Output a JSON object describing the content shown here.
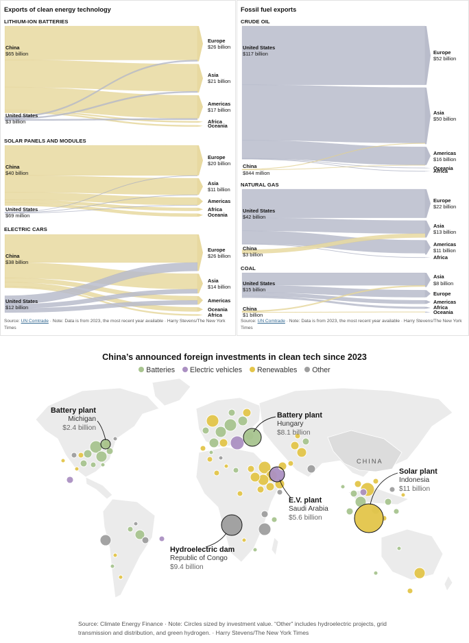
{
  "left_panel": {
    "title": "Exports of clean energy technology",
    "source_prefix": "Source: ",
    "source_link": "UN Comtrade",
    "source_rest": "· Note: Data is from 2023, the most recent year available · Harry Stevens/The New York Times"
  },
  "right_panel": {
    "title": "Fossil fuel exports",
    "source_prefix": "Source: ",
    "source_link": "UN Comtrade",
    "source_rest": "· Note: Data is from 2023, the most recent year available · Harry Stevens/The New York Times"
  },
  "colors": {
    "china": "#e8d9a0",
    "china_line": "#d9c278",
    "us": "#b9bccb",
    "us_line": "#9a9fb5",
    "batteries": "#a8c48f",
    "ev": "#ab90c2",
    "renewables": "#e3c54a",
    "other": "#9e9e9e"
  },
  "chart_data": [
    {
      "type": "sankey",
      "id": "lithium-ion",
      "title": "LITHIUM-ION BATTERIES",
      "sources": [
        {
          "name": "China",
          "label": "$65 billion",
          "value": 65
        },
        {
          "name": "United States",
          "label": "$3 billion",
          "value": 3
        }
      ],
      "targets": [
        {
          "name": "Europe",
          "label": "$26 billion",
          "value": 26
        },
        {
          "name": "Asia",
          "label": "$21 billion",
          "value": 21
        },
        {
          "name": "Americas",
          "label": "$17 billion",
          "value": 17
        },
        {
          "name": "Africa",
          "label": "",
          "value": 1
        },
        {
          "name": "Oceania",
          "label": "",
          "value": 1
        }
      ],
      "flows": [
        [
          "China",
          "Europe",
          25
        ],
        [
          "China",
          "Asia",
          20
        ],
        [
          "China",
          "Americas",
          17
        ],
        [
          "China",
          "Africa",
          1
        ],
        [
          "China",
          "Oceania",
          1
        ],
        [
          "United States",
          "Europe",
          1
        ],
        [
          "United States",
          "Asia",
          1
        ],
        [
          "United States",
          "Americas",
          1
        ]
      ]
    },
    {
      "type": "sankey",
      "id": "solar",
      "title": "SOLAR PANELS AND MODULES",
      "sources": [
        {
          "name": "China",
          "label": "$40 billion",
          "value": 40
        },
        {
          "name": "United States",
          "label": "$69 million",
          "value": 0.069
        }
      ],
      "targets": [
        {
          "name": "Europe",
          "label": "$20 billion",
          "value": 20
        },
        {
          "name": "Asia",
          "label": "$11 billion",
          "value": 11
        },
        {
          "name": "Americas",
          "label": "",
          "value": 5
        },
        {
          "name": "Africa",
          "label": "",
          "value": 2
        },
        {
          "name": "Oceania",
          "label": "",
          "value": 2
        }
      ],
      "flows": [
        [
          "China",
          "Europe",
          20
        ],
        [
          "China",
          "Asia",
          11
        ],
        [
          "China",
          "Americas",
          5
        ],
        [
          "China",
          "Africa",
          2
        ],
        [
          "China",
          "Oceania",
          2
        ],
        [
          "United States",
          "Europe",
          0.02
        ],
        [
          "United States",
          "Asia",
          0.02
        ],
        [
          "United States",
          "Americas",
          0.02
        ]
      ]
    },
    {
      "type": "sankey",
      "id": "electric-cars",
      "title": "ELECTRIC CARS",
      "sources": [
        {
          "name": "China",
          "label": "$38 billion",
          "value": 38
        },
        {
          "name": "United States",
          "label": "$12 billion",
          "value": 12
        }
      ],
      "targets": [
        {
          "name": "Europe",
          "label": "$26 billion",
          "value": 26
        },
        {
          "name": "Asia",
          "label": "$14 billion",
          "value": 14
        },
        {
          "name": "Americas",
          "label": "",
          "value": 6
        },
        {
          "name": "Oceania",
          "label": "",
          "value": 3
        },
        {
          "name": "Africa",
          "label": "",
          "value": 1
        }
      ],
      "flows": [
        [
          "China",
          "Europe",
          20
        ],
        [
          "China",
          "Asia",
          11
        ],
        [
          "China",
          "Americas",
          3
        ],
        [
          "China",
          "Oceania",
          3
        ],
        [
          "China",
          "Africa",
          1
        ],
        [
          "United States",
          "Europe",
          6
        ],
        [
          "United States",
          "Asia",
          3
        ],
        [
          "United States",
          "Americas",
          3
        ]
      ]
    },
    {
      "type": "sankey",
      "id": "crude-oil",
      "title": "CRUDE OIL",
      "sources": [
        {
          "name": "United States",
          "label": "$117 billion",
          "value": 117
        },
        {
          "name": "China",
          "label": "$844 million",
          "value": 0.844
        }
      ],
      "targets": [
        {
          "name": "Europe",
          "label": "$52 billion",
          "value": 52
        },
        {
          "name": "Asia",
          "label": "$50 billion",
          "value": 50
        },
        {
          "name": "Americas",
          "label": "$16 billion",
          "value": 16
        },
        {
          "name": "Oceania",
          "label": "",
          "value": 0.5
        },
        {
          "name": "Africa",
          "label": "",
          "value": 0.3
        }
      ],
      "flows": [
        [
          "United States",
          "Europe",
          52
        ],
        [
          "United States",
          "Asia",
          49
        ],
        [
          "United States",
          "Americas",
          16
        ],
        [
          "United States",
          "Oceania",
          0.4
        ],
        [
          "United States",
          "Africa",
          0.3
        ],
        [
          "China",
          "Asia",
          0.5
        ],
        [
          "China",
          "Americas",
          0.2
        ]
      ]
    },
    {
      "type": "sankey",
      "id": "natural-gas",
      "title": "NATURAL GAS",
      "sources": [
        {
          "name": "United States",
          "label": "$42 billion",
          "value": 42
        },
        {
          "name": "China",
          "label": "$3 billion",
          "value": 3
        }
      ],
      "targets": [
        {
          "name": "Europe",
          "label": "$22 billion",
          "value": 22
        },
        {
          "name": "Asia",
          "label": "$13 billion",
          "value": 13
        },
        {
          "name": "Americas",
          "label": "$11 billion",
          "value": 11
        },
        {
          "name": "Africa",
          "label": "",
          "value": 0.3
        }
      ],
      "flows": [
        [
          "United States",
          "Europe",
          22
        ],
        [
          "United States",
          "Asia",
          10
        ],
        [
          "United States",
          "Americas",
          10
        ],
        [
          "United States",
          "Africa",
          0.2
        ],
        [
          "China",
          "Asia",
          3
        ]
      ]
    },
    {
      "type": "sankey",
      "id": "coal",
      "title": "COAL",
      "sources": [
        {
          "name": "United States",
          "label": "$15 billion",
          "value": 15
        },
        {
          "name": "China",
          "label": "$1 billion",
          "value": 1
        }
      ],
      "targets": [
        {
          "name": "Asia",
          "label": "$8 billion",
          "value": 8
        },
        {
          "name": "Europe",
          "label": "",
          "value": 4
        },
        {
          "name": "Americas",
          "label": "",
          "value": 2
        },
        {
          "name": "Africa",
          "label": "",
          "value": 1
        },
        {
          "name": "Oceania",
          "label": "",
          "value": 0.5
        }
      ],
      "flows": [
        [
          "United States",
          "Asia",
          7
        ],
        [
          "United States",
          "Europe",
          4
        ],
        [
          "United States",
          "Americas",
          2
        ],
        [
          "United States",
          "Africa",
          1
        ],
        [
          "China",
          "Asia",
          0.7
        ],
        [
          "China",
          "Oceania",
          0.3
        ]
      ]
    },
    {
      "type": "bubble-map",
      "id": "investments",
      "title": "China’s announced foreign investments in clean tech since 2023",
      "legend": [
        "Batteries",
        "Electric vehicles",
        "Renewables",
        "Other"
      ],
      "map_label": "CHINA",
      "annotations": [
        {
          "type": "Battery plant",
          "place": "Michigan",
          "value": "$2.4 billion"
        },
        {
          "type": "Battery plant",
          "place": "Hungary",
          "value": "$8.1 billion"
        },
        {
          "type": "Solar plant",
          "place": "Indonesia",
          "value": "$11 billion"
        },
        {
          "type": "E.V. plant",
          "place": "Saudi Arabia",
          "value": "$5.6 billion"
        },
        {
          "type": "Hydroelectric dam",
          "place": "Republic of Congo",
          "value": "$9.4 billion"
        }
      ],
      "source": "Source: Climate Energy Finance · Note: Circles sized by investment value. “Other” includes hydroelectric projects, grid transmission and distribution, and green hydrogen. · Harry Stevens/The New York Times"
    }
  ]
}
